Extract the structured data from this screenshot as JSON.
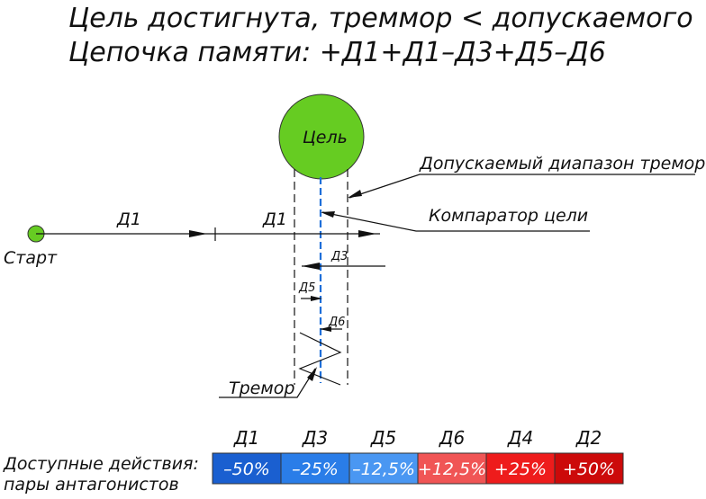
{
  "title": {
    "line1": "Цель достигнута, треммор < допускаемого",
    "line2": "Цепочка памяти: +Д1+Д1–Д3+Д5–Д6"
  },
  "labels": {
    "target": "Цель",
    "start": "Старт",
    "d1_first": "Д1",
    "d1_second": "Д1",
    "d3": "Д3",
    "d5": "Д5",
    "d6": "Д6",
    "tolerance": "Допускаемый диапазон тремора",
    "comparator": "Компаратор цели",
    "tremor": "Тремор",
    "actions_line1": "Доступные действия:",
    "actions_line2": "пары антагонистов"
  },
  "colors": {
    "target": "#66cc22",
    "start": "#66cc22",
    "center_line": "#1e6fd9"
  },
  "actions": [
    {
      "name": "Д1",
      "value": "–50%",
      "color": "#1a5fd0"
    },
    {
      "name": "Д3",
      "value": "–25%",
      "color": "#2a7de8"
    },
    {
      "name": "Д5",
      "value": "–12,5%",
      "color": "#4a97f2"
    },
    {
      "name": "Д6",
      "value": "+12,5%",
      "color": "#f05555"
    },
    {
      "name": "Д4",
      "value": "+25%",
      "color": "#ee1c1c"
    },
    {
      "name": "Д2",
      "value": "+50%",
      "color": "#cc0a0a"
    }
  ]
}
